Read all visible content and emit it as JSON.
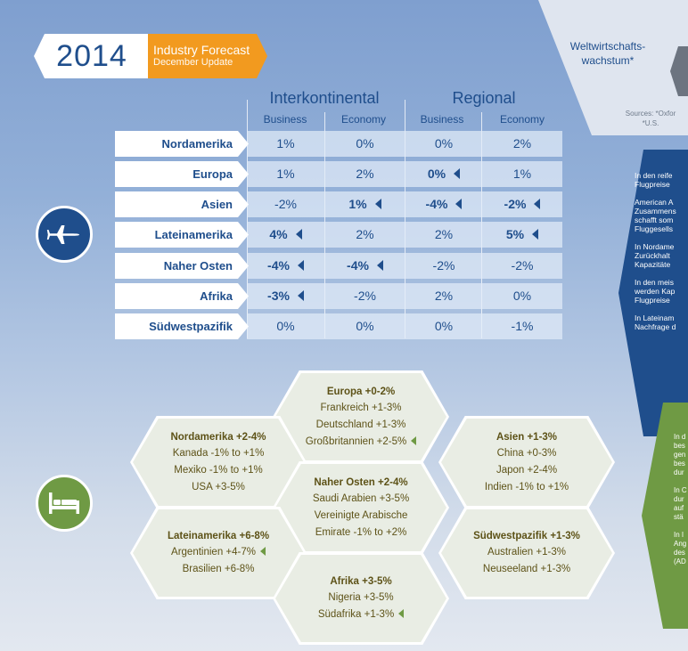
{
  "header": {
    "year": "2014",
    "title": "Industry Forecast",
    "subtitle": "December Update"
  },
  "top_right": {
    "label": "Weltwirtschafts-wachstum*",
    "sources_line1": "Sources: *Oxfor",
    "sources_line2": "*U.S."
  },
  "blue_panel": {
    "paragraphs": [
      [
        "In den reife",
        "Flugpreise"
      ],
      [
        "American A",
        "Zusammens",
        "schafft som",
        "Fluggesells"
      ],
      [
        "In Nordame",
        "Zurückhalt",
        "Kapazitäte"
      ],
      [
        "In den meis",
        "werden Kap",
        "Flugpreise"
      ],
      [
        "In Lateinam",
        "Nachfrage d"
      ]
    ]
  },
  "green_panel": {
    "paragraphs": [
      [
        "In d",
        "bes",
        "gen",
        "bes",
        "dur"
      ],
      [
        "In C",
        "dur",
        "auf",
        "stä"
      ],
      [
        "In I",
        "Ang",
        "des",
        "(AD"
      ]
    ]
  },
  "table": {
    "groups": [
      "Interkontinental",
      "Regional"
    ],
    "subheaders": [
      "Business",
      "Economy",
      "Business",
      "Economy"
    ],
    "rows": [
      {
        "region": "Nordamerika",
        "cells": [
          {
            "v": "1%",
            "b": false,
            "t": false
          },
          {
            "v": "0%",
            "b": false,
            "t": false
          },
          {
            "v": "0%",
            "b": false,
            "t": false
          },
          {
            "v": "2%",
            "b": false,
            "t": false
          }
        ]
      },
      {
        "region": "Europa",
        "cells": [
          {
            "v": "1%",
            "b": false,
            "t": false
          },
          {
            "v": "2%",
            "b": false,
            "t": false
          },
          {
            "v": "0%",
            "b": true,
            "t": true
          },
          {
            "v": "1%",
            "b": false,
            "t": false
          }
        ]
      },
      {
        "region": "Asien",
        "cells": [
          {
            "v": "-2%",
            "b": false,
            "t": false
          },
          {
            "v": "1%",
            "b": true,
            "t": true
          },
          {
            "v": "-4%",
            "b": true,
            "t": true
          },
          {
            "v": "-2%",
            "b": true,
            "t": true
          }
        ]
      },
      {
        "region": "Lateinamerika",
        "cells": [
          {
            "v": "4%",
            "b": true,
            "t": true
          },
          {
            "v": "2%",
            "b": false,
            "t": false
          },
          {
            "v": "2%",
            "b": false,
            "t": false
          },
          {
            "v": "5%",
            "b": true,
            "t": true
          }
        ]
      },
      {
        "region": "Naher Osten",
        "cells": [
          {
            "v": "-4%",
            "b": true,
            "t": true
          },
          {
            "v": "-4%",
            "b": true,
            "t": true
          },
          {
            "v": "-2%",
            "b": false,
            "t": false
          },
          {
            "v": "-2%",
            "b": false,
            "t": false
          }
        ]
      },
      {
        "region": "Afrika",
        "cells": [
          {
            "v": "-3%",
            "b": true,
            "t": true
          },
          {
            "v": "-2%",
            "b": false,
            "t": false
          },
          {
            "v": "2%",
            "b": false,
            "t": false
          },
          {
            "v": "0%",
            "b": false,
            "t": false
          }
        ]
      },
      {
        "region": "Südwestpazifik",
        "cells": [
          {
            "v": "0%",
            "b": false,
            "t": false
          },
          {
            "v": "0%",
            "b": false,
            "t": false
          },
          {
            "v": "0%",
            "b": false,
            "t": false
          },
          {
            "v": "-1%",
            "b": false,
            "t": false
          }
        ]
      }
    ]
  },
  "icons": {
    "air": "airplane-icon",
    "hotel": "bed-icon"
  },
  "hotels": [
    {
      "id": "europa",
      "title": "Europa +0-2%",
      "items": [
        {
          "t": "Frankreich +1-3%",
          "tri": false
        },
        {
          "t": "Deutschland +1-3%",
          "tri": false
        },
        {
          "t": "Großbritannien +2-5%",
          "tri": true
        }
      ]
    },
    {
      "id": "nordamerika",
      "title": "Nordamerika +2-4%",
      "items": [
        {
          "t": "Kanada -1% to +1%",
          "tri": false
        },
        {
          "t": "Mexiko -1% to +1%",
          "tri": false
        },
        {
          "t": "USA +3-5%",
          "tri": false
        }
      ]
    },
    {
      "id": "asien",
      "title": "Asien +1-3%",
      "items": [
        {
          "t": "China +0-3%",
          "tri": false
        },
        {
          "t": "Japon +2-4%",
          "tri": false
        },
        {
          "t": "Indien -1% to +1%",
          "tri": false
        }
      ]
    },
    {
      "id": "naher-osten",
      "title": "Naher Osten +2-4%",
      "items": [
        {
          "t": "Saudi Arabien +3-5%",
          "tri": false
        },
        {
          "t": "Vereinigte Arabische",
          "tri": false
        },
        {
          "t": "Emirate -1% to +2%",
          "tri": false
        }
      ]
    },
    {
      "id": "lateinamerika",
      "title": "Lateinamerika +6-8%",
      "items": [
        {
          "t": "Argentinien +4-7%",
          "tri": true
        },
        {
          "t": "Brasilien +6-8%",
          "tri": false
        }
      ]
    },
    {
      "id": "suedwestpazifik",
      "title": "Südwestpazifik +1-3%",
      "items": [
        {
          "t": "Australien +1-3%",
          "tri": false
        },
        {
          "t": "Neuseeland +1-3%",
          "tri": false
        }
      ]
    },
    {
      "id": "afrika",
      "title": "Afrika +3-5%",
      "items": [
        {
          "t": "Nigeria +3-5%",
          "tri": false
        },
        {
          "t": "Südafrika +1-3%",
          "tri": true
        }
      ]
    }
  ],
  "colors": {
    "navy": "#1f4e8c",
    "orange": "#f29a1f",
    "green": "#6f9a44",
    "olive_text": "#5d5217"
  }
}
